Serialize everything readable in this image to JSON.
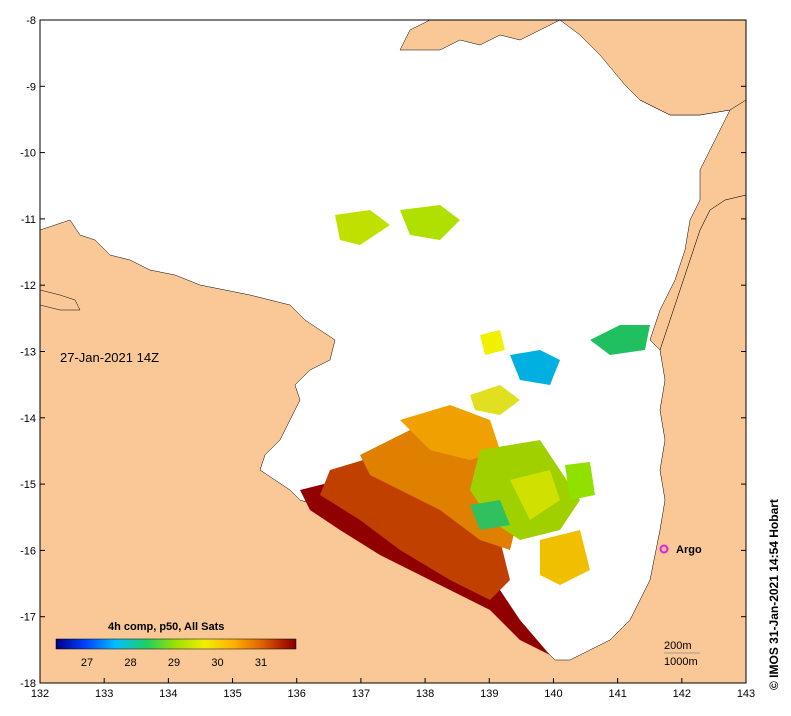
{
  "map": {
    "timestamp": "27-Jan-2021 14Z",
    "credit": "© IMOS 31-Jan-2021 14:54 Hobart",
    "argo_label": "Argo",
    "legend": {
      "title": "4h comp, p50, All Sats",
      "ticks": [
        "27",
        "28",
        "29",
        "30",
        "31"
      ]
    },
    "depth_contours": [
      "200m",
      "1000m"
    ],
    "x_ticks": [
      "132",
      "133",
      "134",
      "135",
      "136",
      "137",
      "138",
      "139",
      "140",
      "141",
      "142",
      "143"
    ],
    "y_ticks": [
      "-8",
      "-9",
      "-10",
      "-11",
      "-12",
      "-13",
      "-14",
      "-15",
      "-16",
      "-17",
      "-18"
    ],
    "colors": {
      "land": "#f9c896",
      "sea": "#ffffff",
      "argo": "#e020e0",
      "colormap": [
        "#00007f",
        "#0040ff",
        "#00c0ff",
        "#20d060",
        "#a0e000",
        "#f0f000",
        "#ffb000",
        "#e06000",
        "#b02000",
        "#800000"
      ]
    }
  }
}
